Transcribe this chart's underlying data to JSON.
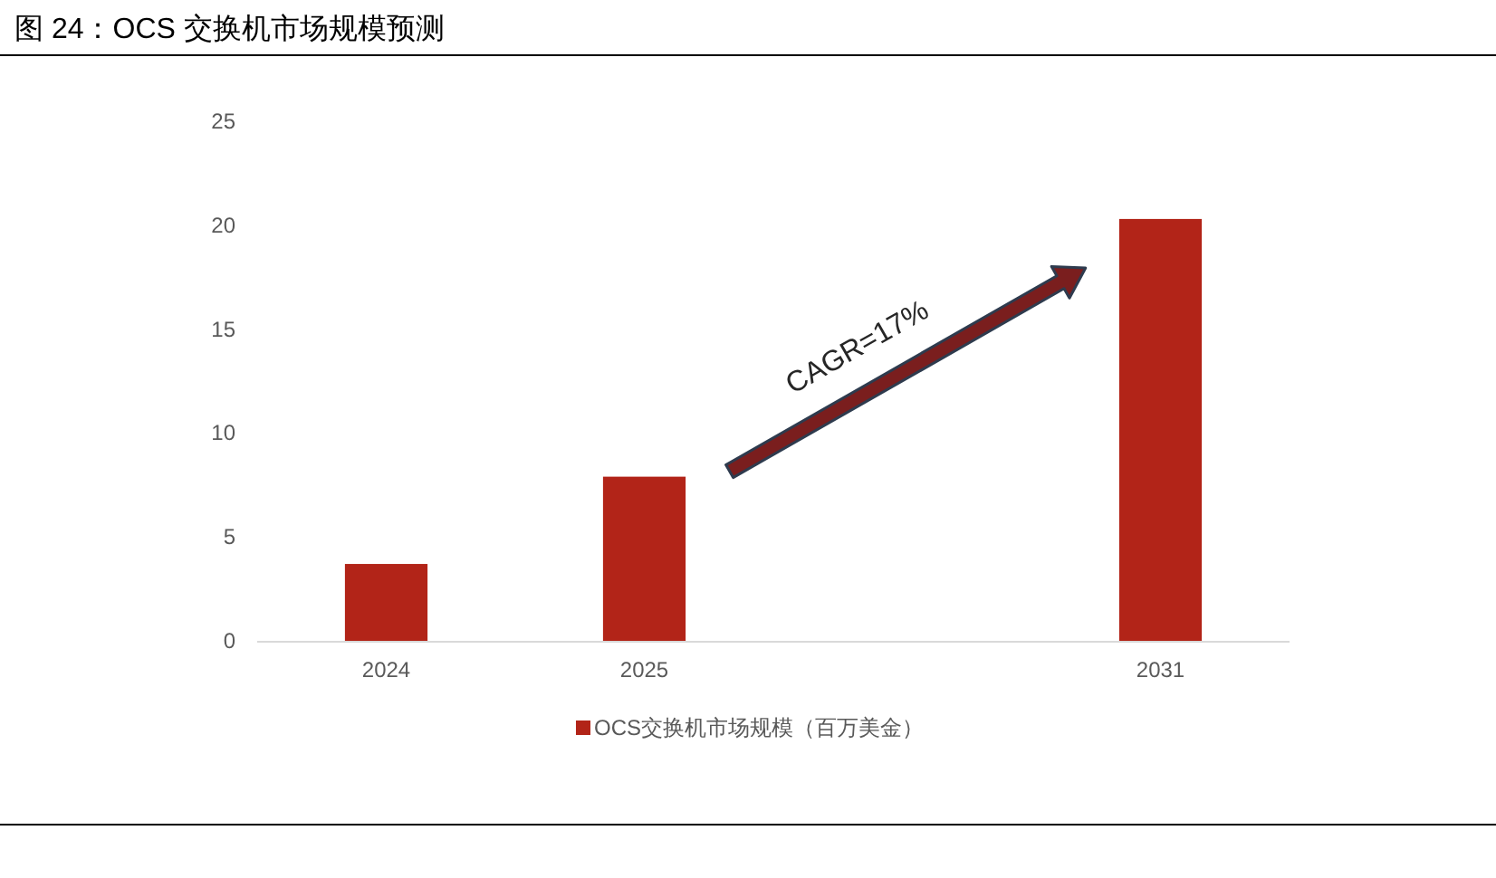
{
  "chart_data": {
    "type": "bar",
    "title": "图 24：OCS 交换机市场规模预测",
    "categories": [
      "2024",
      "2025",
      null,
      "2031"
    ],
    "series": [
      {
        "name": "OCS交换机市场规模（百万美金）",
        "color": "#b22418",
        "values": [
          3.7,
          7.9,
          null,
          20.3
        ]
      }
    ],
    "ylim": [
      0,
      25
    ],
    "yticks": [
      0,
      5,
      10,
      15,
      20,
      25
    ],
    "legend": "bottom",
    "annotations": [
      "CAGR=17%"
    ]
  }
}
